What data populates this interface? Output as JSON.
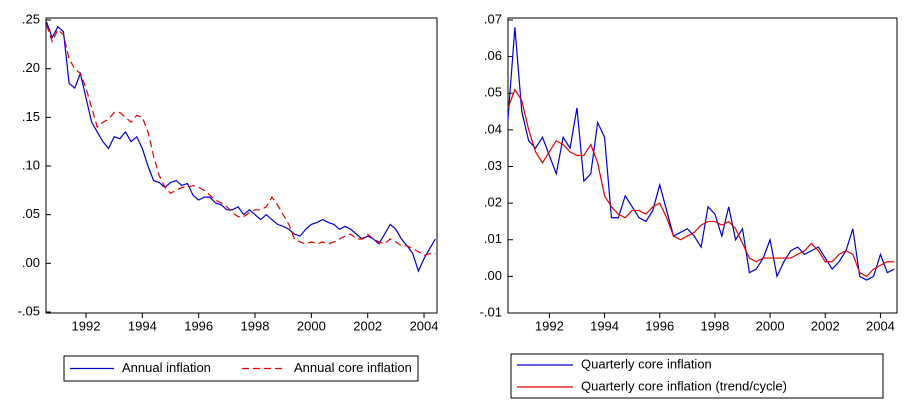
{
  "chart_data": [
    {
      "type": "line",
      "x": [
        1990.6,
        1990.8,
        1991,
        1991.2,
        1991.4,
        1991.6,
        1991.8,
        1992,
        1992.2,
        1992.4,
        1992.6,
        1992.8,
        1993,
        1993.2,
        1993.4,
        1993.6,
        1993.8,
        1994,
        1994.2,
        1994.4,
        1994.6,
        1994.8,
        1995,
        1995.2,
        1995.4,
        1995.6,
        1995.8,
        1996,
        1996.2,
        1996.4,
        1996.6,
        1996.8,
        1997,
        1997.2,
        1997.4,
        1997.6,
        1997.8,
        1998,
        1998.2,
        1998.4,
        1998.6,
        1998.8,
        1999,
        1999.2,
        1999.4,
        1999.6,
        1999.8,
        2000,
        2000.2,
        2000.4,
        2000.6,
        2000.8,
        2001,
        2001.2,
        2001.4,
        2001.6,
        2001.8,
        2002,
        2002.2,
        2002.4,
        2002.6,
        2002.8,
        2003,
        2003.2,
        2003.4,
        2003.6,
        2003.8,
        2004,
        2004.2,
        2004.4
      ],
      "xlim": [
        1990.58,
        2004.46
      ],
      "xticks": [
        1992,
        1994,
        1996,
        1998,
        2000,
        2002,
        2004
      ],
      "ylim": [
        -0.05,
        0.25
      ],
      "yticks": [
        {
          "value": -0.05,
          "label": "-.05"
        },
        {
          "value": 0,
          "label": ".00"
        },
        {
          "value": 0.05,
          "label": ".05"
        },
        {
          "value": 0.1,
          "label": ".10"
        },
        {
          "value": 0.15,
          "label": ".15"
        },
        {
          "value": 0.2,
          "label": ".20"
        },
        {
          "value": 0.25,
          "label": ".25"
        }
      ],
      "legend_layout": "row",
      "series": [
        {
          "name": "Annual inflation",
          "color": "#0000cc",
          "dashed": false,
          "values": [
            0.248,
            0.232,
            0.243,
            0.238,
            0.185,
            0.18,
            0.195,
            0.17,
            0.145,
            0.135,
            0.125,
            0.118,
            0.13,
            0.128,
            0.135,
            0.125,
            0.13,
            0.118,
            0.1,
            0.085,
            0.083,
            0.078,
            0.083,
            0.085,
            0.08,
            0.082,
            0.07,
            0.065,
            0.068,
            0.068,
            0.062,
            0.06,
            0.055,
            0.055,
            0.058,
            0.05,
            0.055,
            0.05,
            0.045,
            0.05,
            0.045,
            0.04,
            0.038,
            0.035,
            0.03,
            0.028,
            0.035,
            0.04,
            0.042,
            0.045,
            0.042,
            0.04,
            0.035,
            0.038,
            0.035,
            0.03,
            0.025,
            0.028,
            0.025,
            0.02,
            0.03,
            0.04,
            0.035,
            0.025,
            0.018,
            0.01,
            -0.008,
            0.005,
            0.015,
            0.025
          ]
        },
        {
          "name": "Annual core inflation",
          "color": "#e00000",
          "dashed": true,
          "values": [
            0.245,
            0.228,
            0.24,
            0.235,
            0.21,
            0.2,
            0.195,
            0.18,
            0.16,
            0.14,
            0.145,
            0.148,
            0.155,
            0.155,
            0.15,
            0.145,
            0.152,
            0.15,
            0.135,
            0.11,
            0.09,
            0.078,
            0.072,
            0.075,
            0.078,
            0.078,
            0.08,
            0.078,
            0.075,
            0.07,
            0.065,
            0.062,
            0.058,
            0.052,
            0.048,
            0.048,
            0.052,
            0.055,
            0.055,
            0.058,
            0.068,
            0.06,
            0.05,
            0.04,
            0.025,
            0.022,
            0.02,
            0.022,
            0.02,
            0.022,
            0.02,
            0.022,
            0.025,
            0.028,
            0.03,
            0.025,
            0.025,
            0.03,
            0.025,
            0.022,
            0.02,
            0.025,
            0.022,
            0.018,
            0.018,
            0.015,
            0.012,
            0.008,
            0.01,
            0.01
          ]
        }
      ]
    },
    {
      "type": "line",
      "x": [
        1990.5,
        1990.75,
        1991,
        1991.25,
        1991.5,
        1991.75,
        1992,
        1992.25,
        1992.5,
        1992.75,
        1993,
        1993.25,
        1993.5,
        1993.75,
        1994,
        1994.25,
        1994.5,
        1994.75,
        1995,
        1995.25,
        1995.5,
        1995.75,
        1996,
        1996.25,
        1996.5,
        1996.75,
        1997,
        1997.25,
        1997.5,
        1997.75,
        1998,
        1998.25,
        1998.5,
        1998.75,
        1999,
        1999.25,
        1999.5,
        1999.75,
        2000,
        2000.25,
        2000.5,
        2000.75,
        2001,
        2001.25,
        2001.5,
        2001.75,
        2002,
        2002.25,
        2002.5,
        2002.75,
        2003,
        2003.25,
        2003.5,
        2003.75,
        2004,
        2004.25,
        2004.5
      ],
      "xlim": [
        1990.5,
        2004.6
      ],
      "xticks": [
        1992,
        1994,
        1996,
        1998,
        2000,
        2002,
        2004
      ],
      "ylim": [
        -0.01,
        0.07
      ],
      "yticks": [
        {
          "value": -0.01,
          "label": "-.01"
        },
        {
          "value": 0,
          "label": ".00"
        },
        {
          "value": 0.01,
          "label": ".01"
        },
        {
          "value": 0.02,
          "label": ".02"
        },
        {
          "value": 0.03,
          "label": ".03"
        },
        {
          "value": 0.04,
          "label": ".04"
        },
        {
          "value": 0.05,
          "label": ".05"
        },
        {
          "value": 0.06,
          "label": ".06"
        },
        {
          "value": 0.07,
          "label": ".07"
        }
      ],
      "legend_layout": "column",
      "series": [
        {
          "name": "Quarterly core inflation",
          "color": "#0000cc",
          "dashed": false,
          "values": [
            0.043,
            0.068,
            0.045,
            0.037,
            0.035,
            0.038,
            0.033,
            0.028,
            0.038,
            0.035,
            0.046,
            0.026,
            0.028,
            0.042,
            0.038,
            0.016,
            0.016,
            0.022,
            0.019,
            0.016,
            0.015,
            0.018,
            0.025,
            0.018,
            0.011,
            0.012,
            0.013,
            0.011,
            0.008,
            0.019,
            0.017,
            0.011,
            0.019,
            0.01,
            0.013,
            0.001,
            0.002,
            0.005,
            0.01,
            0,
            0.004,
            0.007,
            0.008,
            0.006,
            0.007,
            0.008,
            0.005,
            0.002,
            0.004,
            0.007,
            0.013,
            0,
            -0.001,
            0,
            0.006,
            0.001,
            0.002
          ]
        },
        {
          "name": "Quarterly core inflation (trend/cycle)",
          "color": "#e00000",
          "dashed": false,
          "values": [
            0.046,
            0.051,
            0.048,
            0.04,
            0.034,
            0.031,
            0.034,
            0.037,
            0.036,
            0.034,
            0.033,
            0.033,
            0.036,
            0.031,
            0.022,
            0.019,
            0.017,
            0.016,
            0.018,
            0.018,
            0.017,
            0.019,
            0.02,
            0.016,
            0.011,
            0.01,
            0.011,
            0.012,
            0.014,
            0.015,
            0.015,
            0.014,
            0.015,
            0.013,
            0.009,
            0.005,
            0.004,
            0.005,
            0.005,
            0.005,
            0.005,
            0.005,
            0.006,
            0.007,
            0.009,
            0.007,
            0.004,
            0.004,
            0.006,
            0.007,
            0.006,
            0.001,
            0,
            0.002,
            0.003,
            0.004,
            0.004
          ]
        }
      ]
    }
  ]
}
